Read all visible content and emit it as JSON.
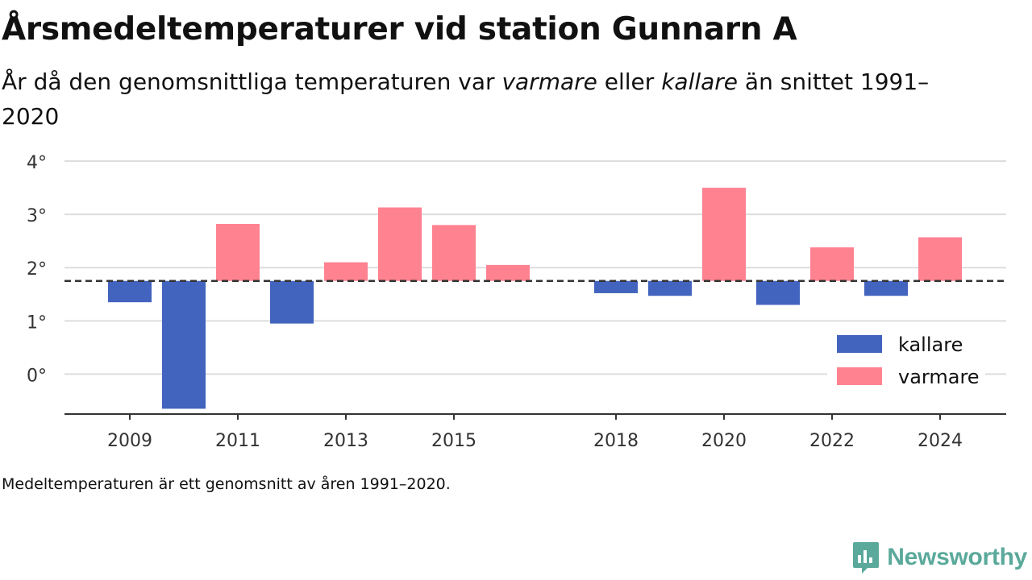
{
  "title": "Årsmedeltemperaturer vid station Gunnarn A",
  "subtitle": {
    "part1": "År då den genomsnittliga temperaturen var ",
    "warm_word": "varmare",
    "part2": " eller ",
    "cold_word": "kallare",
    "part3": " än snittet 1991–2020"
  },
  "footnote": "Medeltemperaturen är ett genomsnitt av åren 1991–2020.",
  "brand": {
    "name": "Newsworthy",
    "icon": "newsworthy-logo-icon"
  },
  "colors": {
    "colder": "#4263be",
    "warmer": "#ff8291",
    "baseline": "#333333",
    "grid": "#dddddd"
  },
  "chart_data": {
    "type": "bar",
    "baseline": 1.75,
    "baseline_style": "dashed",
    "x": [
      2009,
      2010,
      2011,
      2012,
      2013,
      2014,
      2015,
      2016,
      2017,
      2018,
      2019,
      2020,
      2021,
      2022,
      2023,
      2024
    ],
    "values": [
      1.35,
      -0.65,
      2.82,
      0.95,
      2.1,
      3.13,
      2.8,
      2.05,
      1.75,
      1.52,
      1.47,
      3.5,
      1.3,
      2.38,
      1.47,
      2.57
    ],
    "xticks": [
      2009,
      2011,
      2013,
      2015,
      2018,
      2020,
      2022,
      2024
    ],
    "yticks": [
      "0°",
      "1°",
      "2°",
      "3°",
      "4°"
    ],
    "ytick_values": [
      0,
      1,
      2,
      3,
      4
    ],
    "ylim": [
      -0.75,
      4
    ],
    "grid": true,
    "legend": {
      "placement": "bottom-right",
      "entries": [
        "kallare",
        "varmare"
      ]
    }
  }
}
